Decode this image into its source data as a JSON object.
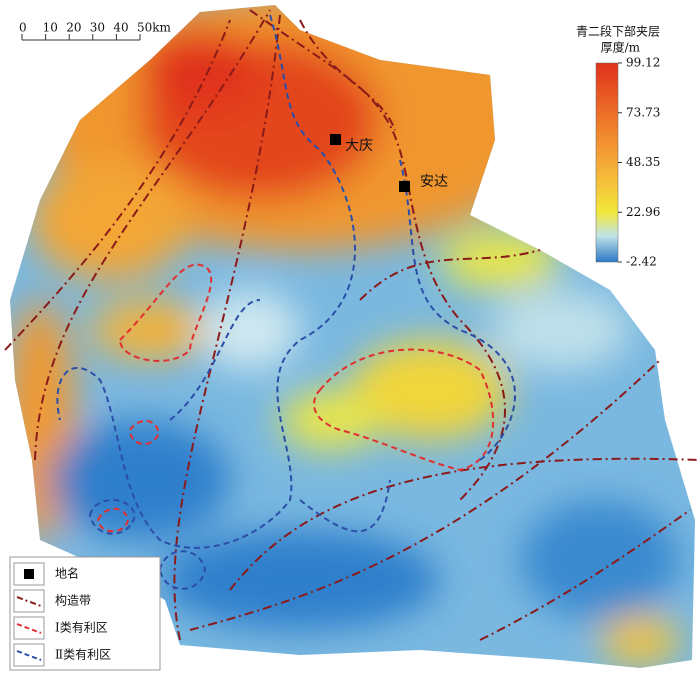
{
  "scale_bar": {
    "ticks": [
      0,
      10,
      20,
      30,
      40,
      {
        "value": 50,
        "label": "50km"
      }
    ],
    "range": [
      0,
      50
    ]
  },
  "colorbar": {
    "title": [
      "青二段下部夹层",
      "厚度/m"
    ],
    "range": [
      -2.42,
      99.12
    ],
    "ticks": [
      99.12,
      73.73,
      48.35,
      22.96,
      -2.42
    ]
  },
  "places": [
    "大庆",
    "安达"
  ],
  "legend": [
    "地名",
    "构造带",
    "Ⅰ类有利区",
    "Ⅱ类有利区"
  ]
}
